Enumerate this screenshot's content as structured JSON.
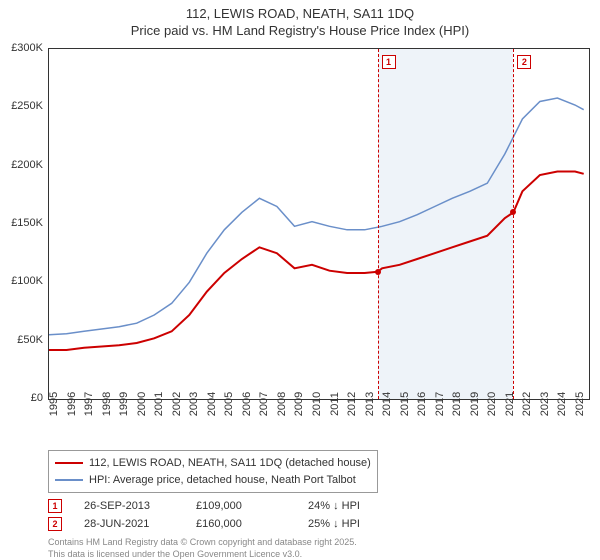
{
  "title": {
    "line1": "112, LEWIS ROAD, NEATH, SA11 1DQ",
    "line2": "Price paid vs. HM Land Registry's House Price Index (HPI)",
    "fontsize": 13
  },
  "chart": {
    "type": "line",
    "background_color": "#ffffff",
    "border_color": "#333333",
    "ylim": [
      0,
      300000
    ],
    "ytick_step": 50000,
    "yticks": [
      "£0",
      "£50K",
      "£100K",
      "£150K",
      "£200K",
      "£250K",
      "£300K"
    ],
    "xlim": [
      1995,
      2025.8
    ],
    "xticks": [
      1995,
      1996,
      1997,
      1998,
      1999,
      2000,
      2001,
      2002,
      2003,
      2004,
      2005,
      2006,
      2007,
      2008,
      2009,
      2010,
      2011,
      2012,
      2013,
      2014,
      2015,
      2016,
      2017,
      2018,
      2019,
      2020,
      2021,
      2022,
      2023,
      2024,
      2025
    ],
    "label_fontsize": 11,
    "shaded_band": {
      "x_start": 2013.74,
      "x_end": 2021.49,
      "color": "#eef3f9"
    },
    "series": [
      {
        "name": "price_paid",
        "color": "#cc0000",
        "width": 2,
        "points": [
          [
            1995,
            42000
          ],
          [
            1996,
            42000
          ],
          [
            1997,
            44000
          ],
          [
            1998,
            45000
          ],
          [
            1999,
            46000
          ],
          [
            2000,
            48000
          ],
          [
            2001,
            52000
          ],
          [
            2002,
            58000
          ],
          [
            2003,
            72000
          ],
          [
            2004,
            92000
          ],
          [
            2005,
            108000
          ],
          [
            2006,
            120000
          ],
          [
            2007,
            130000
          ],
          [
            2008,
            125000
          ],
          [
            2009,
            112000
          ],
          [
            2010,
            115000
          ],
          [
            2011,
            110000
          ],
          [
            2012,
            108000
          ],
          [
            2013,
            108000
          ],
          [
            2013.74,
            109000
          ],
          [
            2014,
            112000
          ],
          [
            2015,
            115000
          ],
          [
            2016,
            120000
          ],
          [
            2017,
            125000
          ],
          [
            2018,
            130000
          ],
          [
            2019,
            135000
          ],
          [
            2020,
            140000
          ],
          [
            2021,
            155000
          ],
          [
            2021.49,
            160000
          ],
          [
            2022,
            178000
          ],
          [
            2023,
            192000
          ],
          [
            2024,
            195000
          ],
          [
            2025,
            195000
          ],
          [
            2025.5,
            193000
          ]
        ]
      },
      {
        "name": "hpi",
        "color": "#6a8fc9",
        "width": 1.5,
        "points": [
          [
            1995,
            55000
          ],
          [
            1996,
            56000
          ],
          [
            1997,
            58000
          ],
          [
            1998,
            60000
          ],
          [
            1999,
            62000
          ],
          [
            2000,
            65000
          ],
          [
            2001,
            72000
          ],
          [
            2002,
            82000
          ],
          [
            2003,
            100000
          ],
          [
            2004,
            125000
          ],
          [
            2005,
            145000
          ],
          [
            2006,
            160000
          ],
          [
            2007,
            172000
          ],
          [
            2008,
            165000
          ],
          [
            2009,
            148000
          ],
          [
            2010,
            152000
          ],
          [
            2011,
            148000
          ],
          [
            2012,
            145000
          ],
          [
            2013,
            145000
          ],
          [
            2014,
            148000
          ],
          [
            2015,
            152000
          ],
          [
            2016,
            158000
          ],
          [
            2017,
            165000
          ],
          [
            2018,
            172000
          ],
          [
            2019,
            178000
          ],
          [
            2020,
            185000
          ],
          [
            2021,
            210000
          ],
          [
            2022,
            240000
          ],
          [
            2023,
            255000
          ],
          [
            2024,
            258000
          ],
          [
            2025,
            252000
          ],
          [
            2025.5,
            248000
          ]
        ]
      }
    ],
    "vlines": [
      {
        "x": 2013.74,
        "label": "1",
        "color": "#cc0000"
      },
      {
        "x": 2021.49,
        "label": "2",
        "color": "#cc0000"
      }
    ],
    "sale_markers": [
      {
        "x": 2013.74,
        "y": 109000,
        "color": "#cc0000"
      },
      {
        "x": 2021.49,
        "y": 160000,
        "color": "#cc0000"
      }
    ]
  },
  "legend": {
    "series1": {
      "label": "112, LEWIS ROAD, NEATH, SA11 1DQ (detached house)",
      "color": "#cc0000"
    },
    "series2": {
      "label": "HPI: Average price, detached house, Neath Port Talbot",
      "color": "#6a8fc9"
    }
  },
  "sales": [
    {
      "marker": "1",
      "date": "26-SEP-2013",
      "price": "£109,000",
      "delta": "24% ↓ HPI"
    },
    {
      "marker": "2",
      "date": "28-JUN-2021",
      "price": "£160,000",
      "delta": "25% ↓ HPI"
    }
  ],
  "footer": {
    "line1": "Contains HM Land Registry data © Crown copyright and database right 2025.",
    "line2": "This data is licensed under the Open Government Licence v3.0."
  }
}
